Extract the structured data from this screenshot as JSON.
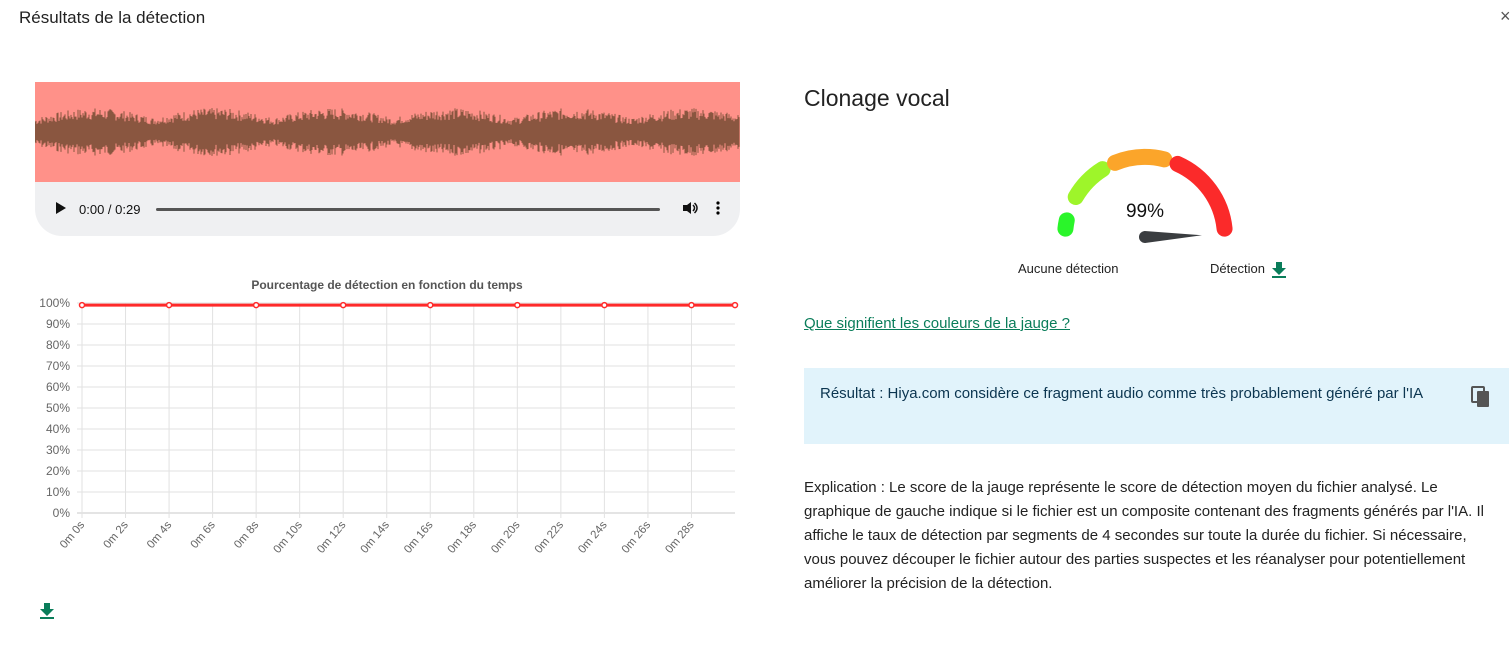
{
  "dialog": {
    "title": "Résultats de la détection",
    "close_icon": "close-icon"
  },
  "player": {
    "time": "0:00 / 0:29",
    "icons": [
      "play-icon",
      "volume-icon",
      "more-vert-icon"
    ],
    "waveform_bg": "#ff9189",
    "waveform_color": "#8a5640"
  },
  "chart_data": {
    "type": "line",
    "title": "Pourcentage de détection en fonction du temps",
    "x": [
      0,
      4,
      8,
      12,
      16,
      20,
      24,
      28,
      30
    ],
    "values": [
      99,
      99,
      99,
      99,
      99,
      99,
      99,
      99,
      99
    ],
    "xlim": [
      0,
      30
    ],
    "ylim": [
      0,
      100
    ],
    "x_tick_labels": [
      "0m 0s",
      "0m 2s",
      "0m 4s",
      "0m 6s",
      "0m 8s",
      "0m 10s",
      "0m 12s",
      "0m 14s",
      "0m 16s",
      "0m 18s",
      "0m 20s",
      "0m 22s",
      "0m 24s",
      "0m 26s",
      "0m 28s"
    ],
    "y_tick_labels": [
      "0%",
      "10%",
      "20%",
      "30%",
      "40%",
      "50%",
      "60%",
      "70%",
      "80%",
      "90%",
      "100%"
    ],
    "grid": true,
    "color": "#ff2a2a"
  },
  "results": {
    "heading": "Clonage vocal",
    "gauge": {
      "value_label": "99%",
      "value": 99,
      "left_label": "Aucune détection",
      "right_label": "Détection",
      "colors": [
        "#2af52a",
        "#9ef52a",
        "#fba52a",
        "#fb2a2a"
      ]
    },
    "link": "Que signifient les couleurs de la jauge ?",
    "result_text": "Résultat : Hiya.com considère ce fragment audio comme très probablement généré par l'IA",
    "explanation": "Explication : Le score de la jauge représente le score de détection moyen du fichier analysé. Le graphique de gauche indique si le fichier est un composite contenant des fragments générés par l'IA. Il affiche le taux de détection par segments de 4 secondes sur toute la durée du fichier. Si nécessaire, vous pouvez découper le fichier autour des parties suspectes et les réanalyser pour potentiellement améliorer la précision de la détection."
  }
}
